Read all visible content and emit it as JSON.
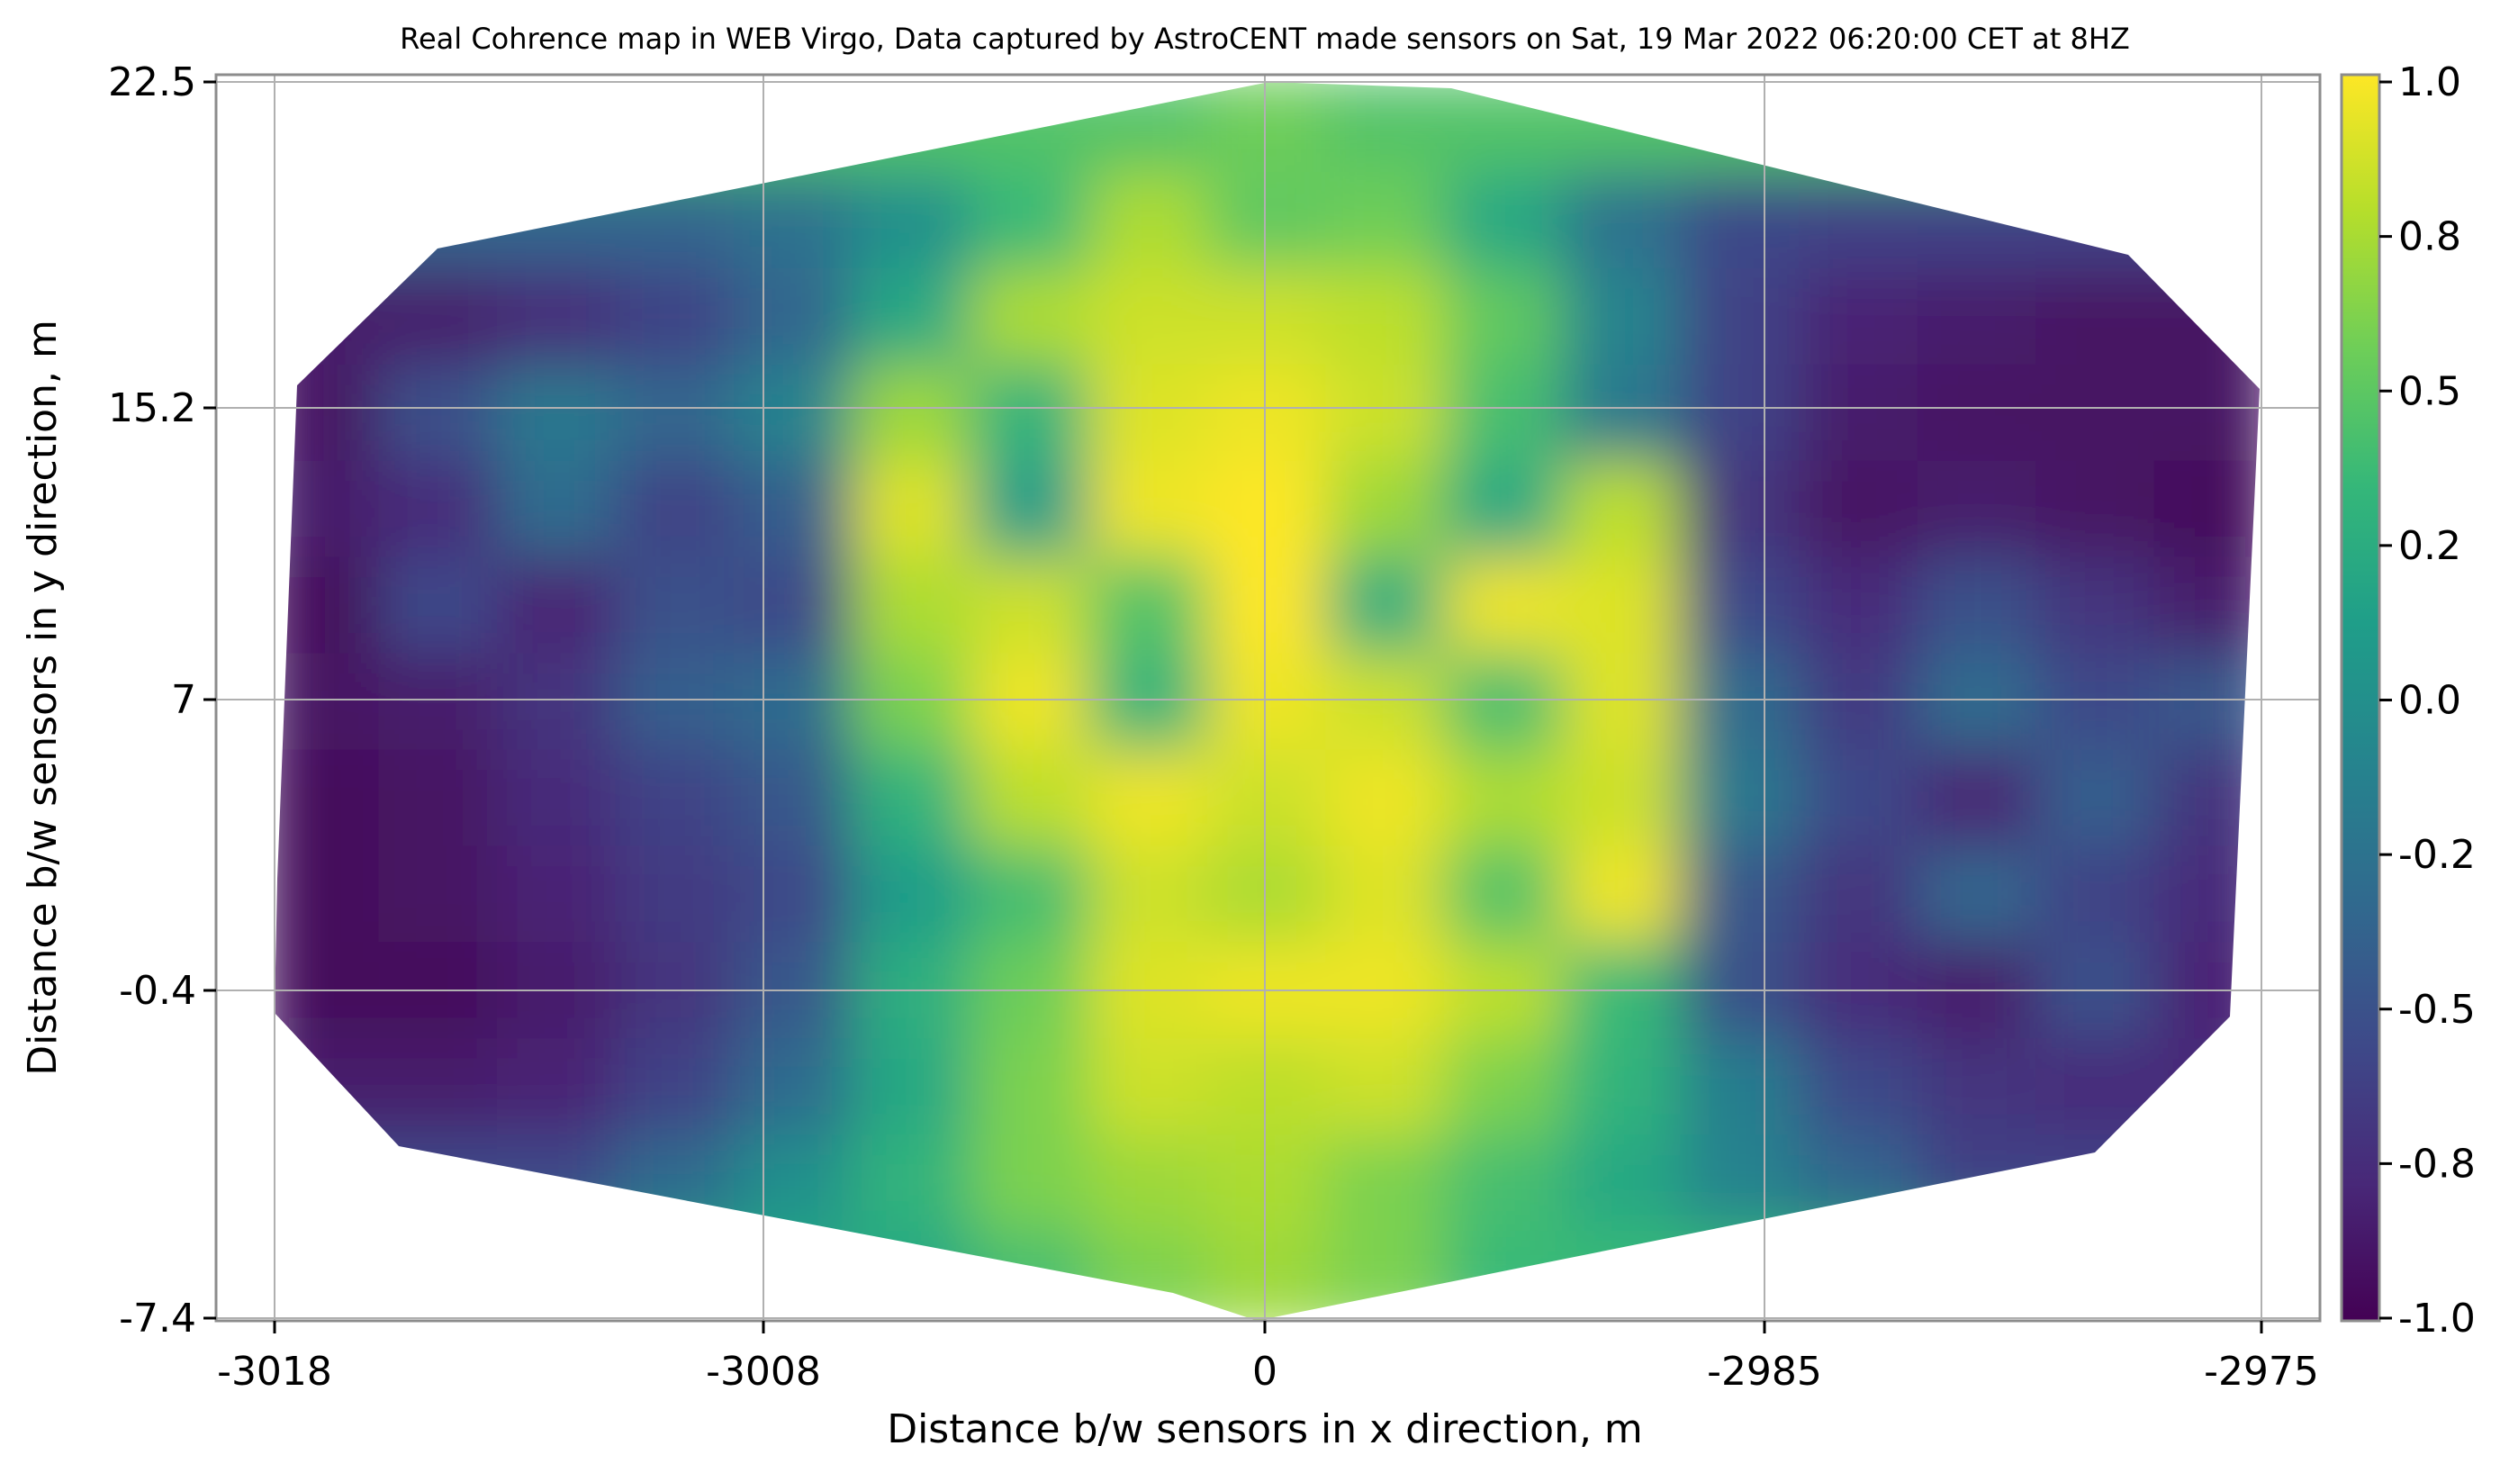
{
  "chart_data": {
    "type": "heatmap",
    "title": "Real Cohrence map in WEB Virgo, Data captured by AstroCENT made sensors on Sat, 19 Mar 2022 06:20:00 CET at 8HZ",
    "xlabel": "Distance b/w sensors in x direction, m",
    "ylabel": "Distance b/w sensors in y direction, m",
    "x_tick_labels": [
      "-3018",
      "-3008",
      "0",
      "-2985",
      "-2975"
    ],
    "y_tick_labels": [
      "22.5",
      "15.2",
      "7",
      "-0.4",
      "-7.4"
    ],
    "colorbar": {
      "colormap": "viridis",
      "range": [
        -1.0,
        1.0
      ],
      "tick_labels": [
        "1.0",
        "0.8",
        "0.5",
        "0.2",
        "0.0",
        "-0.2",
        "-0.5",
        "-0.8",
        "-1.0"
      ]
    },
    "grid": true,
    "colors": {
      "viridis": [
        "#440154",
        "#482878",
        "#3e4989",
        "#31688e",
        "#26828e",
        "#1f9e89",
        "#35b779",
        "#6ece58",
        "#b5de2b",
        "#fde725"
      ]
    },
    "value_grid": {
      "rows_top_to_bottom": true,
      "values": [
        [
          null,
          null,
          null,
          null,
          null,
          null,
          null,
          0.45,
          0.55,
          0.45,
          null,
          null,
          null,
          null,
          null,
          null,
          null
        ],
        [
          null,
          null,
          null,
          -0.35,
          -0.25,
          0.0,
          0.35,
          0.75,
          0.5,
          0.55,
          0.2,
          -0.25,
          -0.55,
          -0.6,
          null,
          null,
          null
        ],
        [
          null,
          -0.85,
          -0.75,
          -0.6,
          -0.35,
          0.2,
          0.75,
          0.85,
          0.85,
          0.8,
          0.5,
          -0.1,
          -0.6,
          -0.8,
          -0.85,
          -0.9,
          null
        ],
        [
          -0.9,
          -0.5,
          -0.2,
          -0.35,
          -0.1,
          0.7,
          0.3,
          0.9,
          0.95,
          0.85,
          0.4,
          -0.2,
          -0.6,
          -0.85,
          -0.9,
          -0.9,
          -0.9
        ],
        [
          -0.85,
          -0.75,
          -0.3,
          -0.6,
          -0.4,
          0.9,
          0.1,
          0.95,
          1.0,
          0.7,
          0.2,
          0.8,
          -0.7,
          -0.9,
          -0.85,
          -0.9,
          -0.95
        ],
        [
          -0.95,
          -0.55,
          -0.8,
          -0.5,
          -0.55,
          0.75,
          0.85,
          0.45,
          1.0,
          0.25,
          0.95,
          0.9,
          -0.55,
          -0.75,
          -0.5,
          -0.7,
          -0.85
        ],
        [
          -0.9,
          -0.85,
          -0.7,
          -0.4,
          -0.3,
          0.6,
          0.95,
          0.3,
          0.95,
          0.85,
          0.4,
          0.9,
          -0.3,
          -0.65,
          -0.3,
          -0.55,
          -0.45
        ],
        [
          -0.95,
          -0.9,
          -0.75,
          -0.6,
          -0.45,
          0.3,
          0.8,
          0.95,
          0.85,
          0.95,
          0.75,
          0.85,
          -0.2,
          -0.55,
          -0.8,
          -0.4,
          -0.7
        ],
        [
          -0.95,
          -0.9,
          -0.8,
          -0.65,
          -0.55,
          0.1,
          0.4,
          0.85,
          0.75,
          0.9,
          0.45,
          0.95,
          -0.45,
          -0.7,
          -0.35,
          -0.6,
          -0.75
        ],
        [
          -0.95,
          -0.95,
          -0.85,
          -0.7,
          -0.45,
          0.25,
          0.55,
          0.9,
          0.95,
          0.95,
          0.8,
          0.35,
          -0.5,
          -0.75,
          -0.85,
          -0.5,
          -0.8
        ],
        [
          null,
          -0.85,
          -0.8,
          -0.6,
          -0.3,
          0.2,
          0.6,
          0.85,
          0.8,
          0.85,
          0.6,
          0.3,
          -0.15,
          -0.55,
          -0.7,
          -0.75,
          null
        ],
        [
          null,
          null,
          -0.55,
          -0.3,
          0.0,
          0.3,
          0.6,
          0.7,
          0.75,
          0.6,
          0.4,
          0.2,
          -0.1,
          -0.35,
          -0.6,
          null,
          null
        ],
        [
          null,
          null,
          null,
          null,
          null,
          0.2,
          0.4,
          0.6,
          0.7,
          0.6,
          0.35,
          null,
          null,
          null,
          null,
          null,
          null
        ]
      ]
    }
  }
}
